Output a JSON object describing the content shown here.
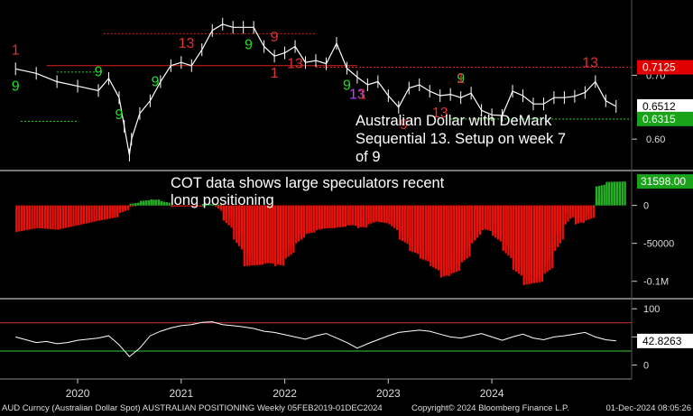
{
  "annotations": {
    "title": "Australian Dollar with DeMark Sequential 13. Setup on week 7 of 9",
    "cot_note": "COT data shows large speculators recent long positioning"
  },
  "footer": {
    "left": "AUD Curncy (Australian Dollar Spot) AUSTRALIAN POSITIONING  Weekly 05FEB2019-01DEC2024",
    "middle": "Copyright© 2024 Bloomberg Finance L.P.",
    "right": "01-Dec-2024 08:05:26"
  },
  "colors": {
    "background": "#000000",
    "price": "#ffffff",
    "positive_bar": "#27ae27",
    "negative_bar": "#e8120c",
    "setup_green": "#22dd22",
    "countdown_red": "#e03030",
    "tdst_green": "#22dd22",
    "tdst_red": "#dd2020",
    "tag_red": "#e00000",
    "tag_green": "#1aa31a",
    "tag_white": "#ffffff",
    "rsi_upper": "#cc3333",
    "rsi_lower": "#33cc33"
  },
  "chart_data": [
    {
      "type": "line",
      "title": "AUD Curncy",
      "x_labels": [
        "2020",
        "2021",
        "2022",
        "2023",
        "2024"
      ],
      "y_ticks": [
        "0.70",
        "0.60"
      ],
      "y_ticks_values": [
        0.7,
        0.6
      ],
      "ylim": [
        0.555,
        0.815
      ],
      "x": [
        2019.1,
        2019.3,
        2019.5,
        2019.7,
        2019.9,
        2020.0,
        2020.1,
        2020.15,
        2020.2,
        2020.22,
        2020.3,
        2020.4,
        2020.5,
        2020.6,
        2020.7,
        2020.8,
        2020.9,
        2021.0,
        2021.1,
        2021.2,
        2021.3,
        2021.4,
        2021.5,
        2021.6,
        2021.7,
        2021.8,
        2021.9,
        2022.0,
        2022.1,
        2022.2,
        2022.3,
        2022.4,
        2022.5,
        2022.6,
        2022.7,
        2022.8,
        2022.9,
        2023.0,
        2023.1,
        2023.2,
        2023.3,
        2023.4,
        2023.5,
        2023.6,
        2023.7,
        2023.8,
        2023.9,
        2024.0,
        2024.1,
        2024.2,
        2024.3,
        2024.4,
        2024.5,
        2024.6,
        2024.7,
        2024.8,
        2024.9
      ],
      "values": [
        0.71,
        0.703,
        0.69,
        0.683,
        0.676,
        0.695,
        0.665,
        0.62,
        0.575,
        0.6,
        0.64,
        0.66,
        0.69,
        0.715,
        0.72,
        0.715,
        0.74,
        0.77,
        0.78,
        0.775,
        0.775,
        0.775,
        0.745,
        0.73,
        0.735,
        0.745,
        0.72,
        0.723,
        0.718,
        0.75,
        0.711,
        0.697,
        0.685,
        0.69,
        0.668,
        0.65,
        0.68,
        0.685,
        0.675,
        0.668,
        0.67,
        0.665,
        0.672,
        0.645,
        0.638,
        0.637,
        0.675,
        0.668,
        0.655,
        0.655,
        0.665,
        0.665,
        0.667,
        0.673,
        0.69,
        0.66,
        0.6512
      ],
      "last_value_tag": "0.6512",
      "tdst_resistance_tag": "0.7125",
      "tdst_resistance": 0.7125,
      "tdst_support_tag": "0.6315",
      "tdst_support": 0.6315,
      "annotations": [
        {
          "x": 2019.1,
          "label": "1",
          "color": "red",
          "pos": "above"
        },
        {
          "x": 2019.1,
          "label": "9",
          "color": "green",
          "pos": "below"
        },
        {
          "x": 2019.9,
          "label": "9",
          "color": "green",
          "pos": "above"
        },
        {
          "x": 2020.1,
          "label": "9",
          "color": "green",
          "pos": "below"
        },
        {
          "x": 2020.45,
          "label": "9",
          "color": "green",
          "pos": "above"
        },
        {
          "x": 2020.75,
          "label": "13",
          "color": "red",
          "pos": "above"
        },
        {
          "x": 2021.35,
          "label": "9",
          "color": "green",
          "pos": "below"
        },
        {
          "x": 2021.6,
          "label": "9",
          "color": "red",
          "pos": "above"
        },
        {
          "x": 2021.6,
          "label": "1",
          "color": "red",
          "pos": "below"
        },
        {
          "x": 2021.8,
          "label": "13",
          "color": "red",
          "pos": "below"
        },
        {
          "x": 2022.3,
          "label": "9",
          "color": "green",
          "pos": "below"
        },
        {
          "x": 2022.4,
          "label": "13",
          "color": "purple",
          "pos": "below"
        },
        {
          "x": 2022.45,
          "label": "1",
          "color": "red",
          "pos": "below"
        },
        {
          "x": 2022.85,
          "label": "9",
          "color": "red",
          "pos": "below"
        },
        {
          "x": 2023.2,
          "label": "13",
          "color": "red",
          "pos": "below"
        },
        {
          "x": 2023.4,
          "label": "9",
          "color": "green",
          "pos": "above"
        },
        {
          "x": 2023.4,
          "label": "1",
          "color": "red",
          "pos": "above"
        },
        {
          "x": 2024.65,
          "label": "13",
          "color": "red",
          "pos": "above"
        }
      ]
    },
    {
      "type": "bar",
      "title": "Large speculator positioning",
      "y_ticks": [
        "0",
        "-50000",
        "-0.1M"
      ],
      "y_ticks_values": [
        0,
        -50000,
        -100000
      ],
      "ylim": [
        -117000,
        40000
      ],
      "last_value_tag": "31598.00",
      "x": [
        2019.1,
        2019.3,
        2019.5,
        2019.7,
        2019.9,
        2020.0,
        2020.1,
        2020.2,
        2020.3,
        2020.4,
        2020.5,
        2020.6,
        2020.7,
        2020.8,
        2020.9,
        2021.0,
        2021.1,
        2021.2,
        2021.3,
        2021.4,
        2021.5,
        2021.6,
        2021.7,
        2021.8,
        2021.9,
        2022.0,
        2022.1,
        2022.2,
        2022.3,
        2022.4,
        2022.5,
        2022.6,
        2022.7,
        2022.8,
        2022.9,
        2023.0,
        2023.1,
        2023.2,
        2023.3,
        2023.4,
        2023.5,
        2023.6,
        2023.7,
        2023.8,
        2023.9,
        2024.0,
        2024.1,
        2024.2,
        2024.3,
        2024.4,
        2024.5,
        2024.6,
        2024.7,
        2024.8,
        2024.9
      ],
      "values": [
        -35000,
        -30000,
        -32000,
        -26000,
        -20000,
        -15000,
        -5000,
        2000,
        6000,
        8000,
        3000,
        -2000,
        -1000,
        -2000,
        2000,
        1000,
        -20000,
        -45000,
        -80000,
        -78000,
        -75000,
        -80000,
        -60000,
        -40000,
        -35000,
        -30000,
        -30000,
        -28000,
        -25000,
        -30000,
        -20000,
        -22000,
        -25000,
        -45000,
        -60000,
        -70000,
        -80000,
        -95000,
        -85000,
        -65000,
        -35000,
        -30000,
        -40000,
        -60000,
        -85000,
        -105000,
        -100000,
        -80000,
        -40000,
        -10000,
        -25000,
        -15000,
        25000,
        31000,
        31598
      ]
    },
    {
      "type": "line",
      "title": "RSI",
      "y_ticks": [
        "100",
        "50",
        "0"
      ],
      "y_ticks_values": [
        100,
        50,
        0
      ],
      "ylim": [
        -12,
        110
      ],
      "upper_band": 75,
      "lower_band": 25,
      "last_value_tag": "42.8263",
      "x": [
        2019.1,
        2019.2,
        2019.3,
        2019.4,
        2019.5,
        2019.6,
        2019.7,
        2019.8,
        2019.9,
        2020.0,
        2020.1,
        2020.2,
        2020.3,
        2020.4,
        2020.5,
        2020.6,
        2020.7,
        2020.8,
        2020.9,
        2021.0,
        2021.1,
        2021.2,
        2021.3,
        2021.4,
        2021.5,
        2021.6,
        2021.7,
        2021.8,
        2021.9,
        2022.0,
        2022.1,
        2022.2,
        2022.3,
        2022.4,
        2022.5,
        2022.6,
        2022.7,
        2022.8,
        2022.9,
        2023.0,
        2023.1,
        2023.2,
        2023.3,
        2023.4,
        2023.5,
        2023.6,
        2023.7,
        2023.8,
        2023.9,
        2024.0,
        2024.1,
        2024.2,
        2024.3,
        2024.4,
        2024.5,
        2024.6,
        2024.7,
        2024.8,
        2024.9
      ],
      "values": [
        50,
        45,
        40,
        42,
        38,
        40,
        44,
        46,
        48,
        52,
        36,
        15,
        30,
        52,
        60,
        66,
        70,
        72,
        76,
        77,
        72,
        70,
        68,
        65,
        60,
        58,
        54,
        50,
        46,
        52,
        56,
        48,
        40,
        30,
        38,
        45,
        52,
        58,
        60,
        62,
        60,
        55,
        50,
        48,
        52,
        56,
        50,
        44,
        50,
        55,
        48,
        45,
        50,
        52,
        55,
        58,
        50,
        45,
        42.83
      ]
    },
    {
      "type": "axis",
      "x_labels": [
        "2020",
        "2021",
        "2022",
        "2023",
        "2024"
      ],
      "x_label_positions": [
        2019.7,
        2020.7,
        2021.7,
        2022.7,
        2023.7
      ]
    }
  ]
}
